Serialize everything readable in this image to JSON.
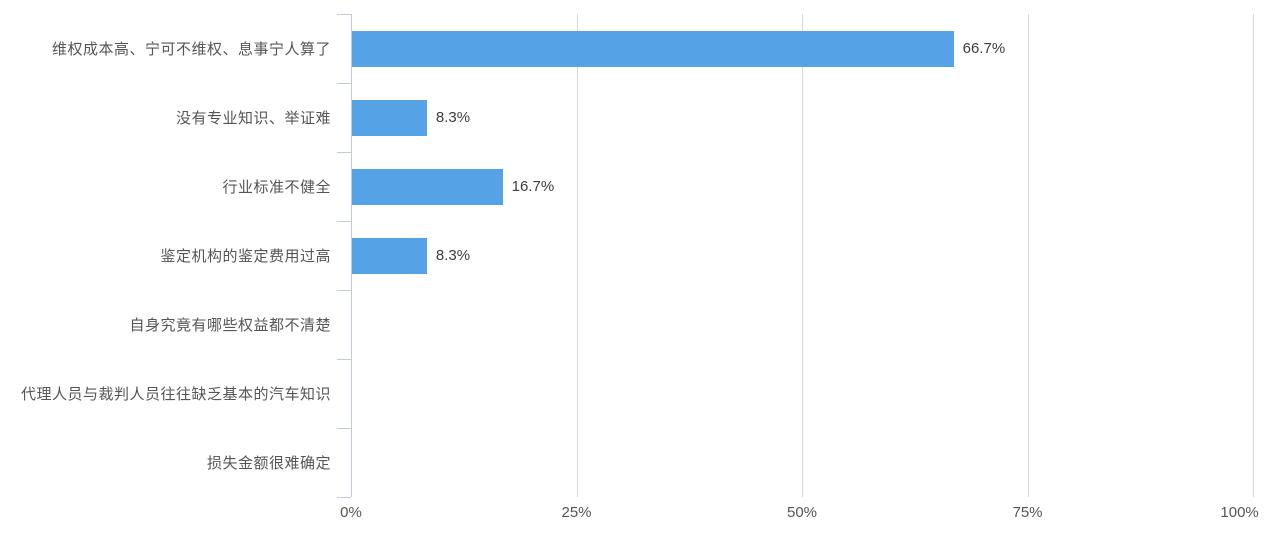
{
  "chart_data": {
    "type": "bar",
    "orientation": "horizontal",
    "title": "",
    "xlabel": "",
    "ylabel": "",
    "categories": [
      "维权成本高、宁可不维权、息事宁人算了",
      "没有专业知识、举证难",
      "行业标准不健全",
      "鉴定机构的鉴定费用过高",
      "自身究竟有哪些权益都不清楚",
      "代理人员与裁判人员往往缺乏基本的汽车知识",
      "损失金额很难确定"
    ],
    "values": [
      66.7,
      8.3,
      16.7,
      8.3,
      0,
      0,
      0
    ],
    "value_labels": [
      "66.7%",
      "8.3%",
      "16.7%",
      "8.3%",
      "",
      "",
      ""
    ],
    "x_ticks": [
      "0%",
      "25%",
      "50%",
      "75%",
      "100%"
    ],
    "xlim": [
      0,
      100
    ],
    "grid": true,
    "legend": "none"
  },
  "colors": {
    "bar": "#55a2e6",
    "gridline": "#d9d9d9",
    "axis": "#c2ccd6",
    "category_label": "#555555",
    "value_label": "#3d3d3d",
    "tick_label": "#555555",
    "background": "#ffffff"
  }
}
